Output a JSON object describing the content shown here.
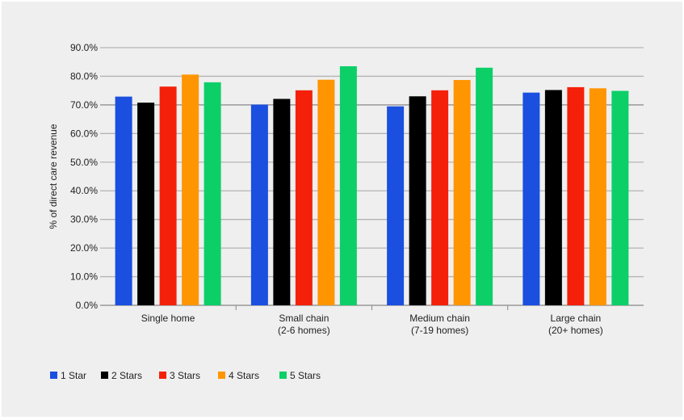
{
  "chart_data": {
    "type": "bar",
    "title": "",
    "xlabel": "",
    "ylabel": "% of direct care revenue",
    "ylim": [
      0,
      90
    ],
    "yticks": [
      "0.0%",
      "10.0%",
      "20.0%",
      "30.0%",
      "40.0%",
      "50.0%",
      "60.0%",
      "70.0%",
      "80.0%",
      "90.0%"
    ],
    "grid": true,
    "legend_position": "bottom-left",
    "categories": [
      [
        "Single home"
      ],
      [
        "Small chain",
        "(2-6 homes)"
      ],
      [
        "Medium chain",
        "(7-19 homes)"
      ],
      [
        "Large chain",
        "(20+ homes)"
      ]
    ],
    "series": [
      {
        "name": "1 Star",
        "color": "#1a4fe0",
        "values": [
          72.9,
          70.1,
          69.5,
          74.3
        ]
      },
      {
        "name": "2 Stars",
        "color": "#000000",
        "values": [
          70.8,
          72.1,
          73.0,
          75.2
        ]
      },
      {
        "name": "3 Stars",
        "color": "#f5200a",
        "values": [
          76.4,
          75.1,
          75.1,
          76.2
        ]
      },
      {
        "name": "4 Stars",
        "color": "#ff9500",
        "values": [
          80.6,
          78.8,
          78.7,
          75.8
        ]
      },
      {
        "name": "5 Stars",
        "color": "#0ccf68",
        "values": [
          77.9,
          83.5,
          83.0,
          74.9
        ]
      }
    ]
  }
}
